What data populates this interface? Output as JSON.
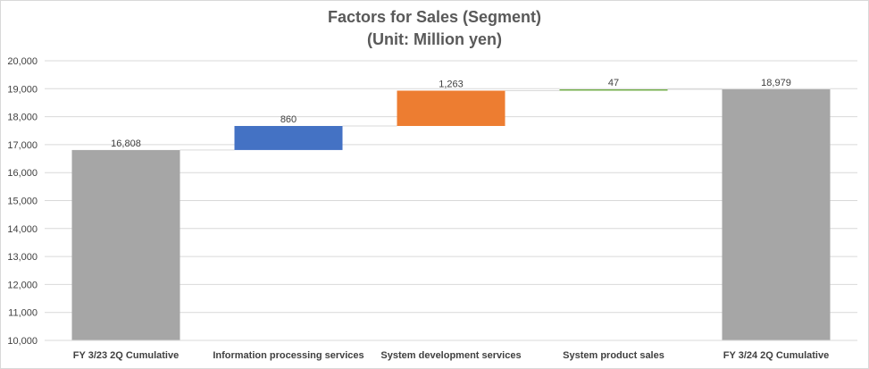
{
  "chart_data": {
    "type": "bar",
    "subtype": "waterfall",
    "title": "Factors for Sales (Segment)",
    "subtitle": "(Unit: Million yen)",
    "categories": [
      "FY 3/23 2Q Cumulative",
      "Information processing services",
      "System development services",
      "System product sales",
      "FY 3/24 2Q Cumulative"
    ],
    "values": [
      16808,
      860,
      1263,
      47,
      18979
    ],
    "data_labels": [
      "16,808",
      "860",
      "1,263",
      "47",
      "18,979"
    ],
    "bar_kinds": [
      "total",
      "delta",
      "delta",
      "delta",
      "total"
    ],
    "colors": [
      "#a6a6a6",
      "#4472c4",
      "#ed7d31",
      "#70ad47",
      "#a6a6a6"
    ],
    "connector_color": "#d9d9d9",
    "ylim": [
      10000,
      20000
    ],
    "yticks": [
      10000,
      11000,
      12000,
      13000,
      14000,
      15000,
      16000,
      17000,
      18000,
      19000,
      20000
    ],
    "ytick_labels": [
      "10,000",
      "11,000",
      "12,000",
      "13,000",
      "14,000",
      "15,000",
      "16,000",
      "17,000",
      "18,000",
      "19,000",
      "20,000"
    ],
    "grid": true,
    "legend": "none"
  }
}
